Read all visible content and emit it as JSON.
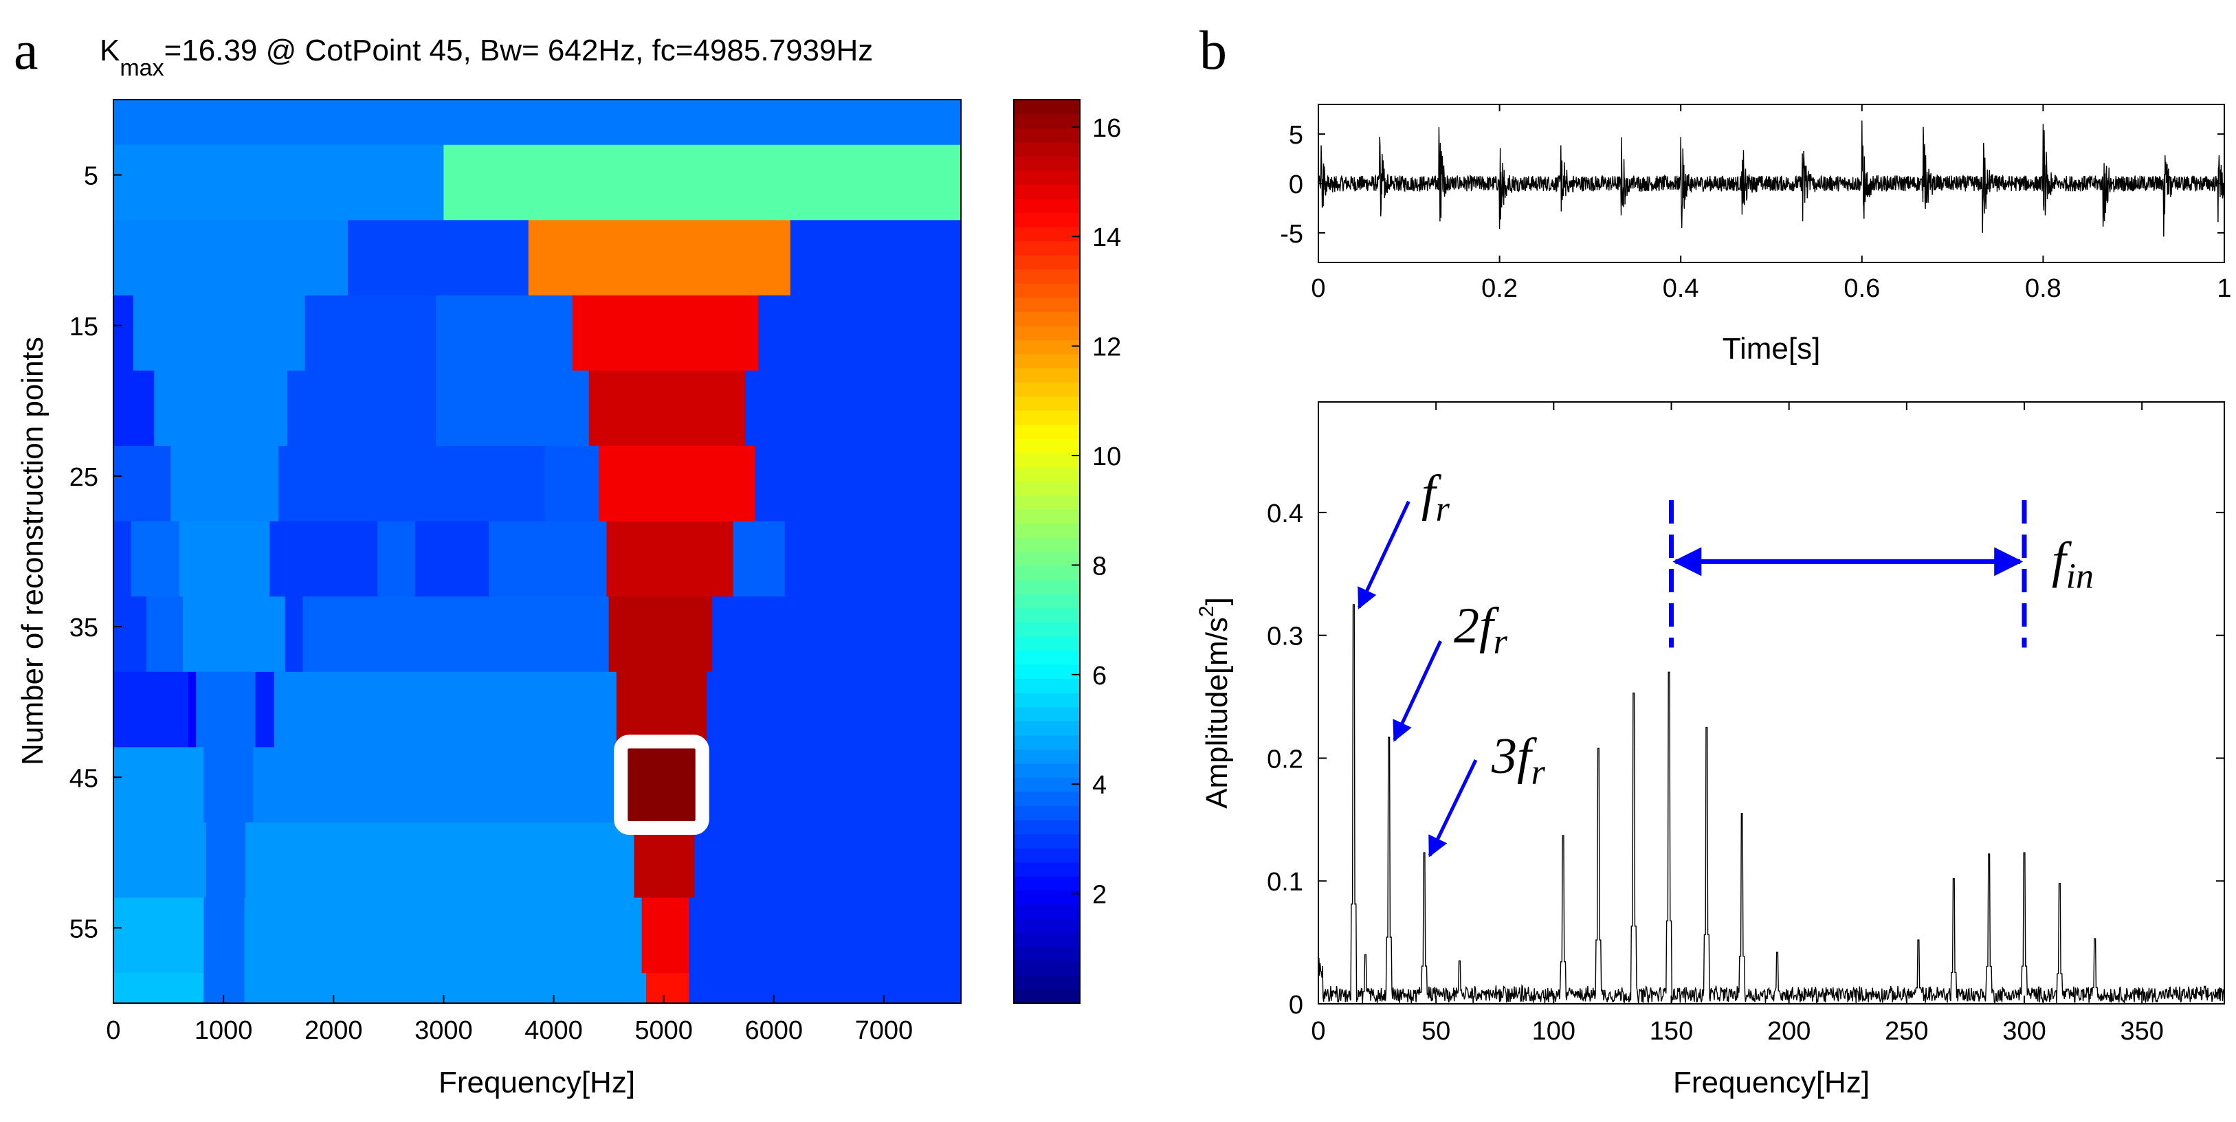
{
  "panel_labels": {
    "a": "a",
    "b": "b"
  },
  "chart_data": [
    {
      "id": "kurtogram",
      "type": "heatmap",
      "title": {
        "base": "K",
        "sub": "max",
        "rest": "=16.39 @ CotPoint 45, Bw= 642Hz, fc=4985.7939Hz"
      },
      "xlabel": "Frequency[Hz]",
      "ylabel": "Number of reconstruction points",
      "xlim": [
        0,
        7700
      ],
      "ylim": [
        0,
        60
      ],
      "xticks": [
        0,
        1000,
        2000,
        3000,
        4000,
        5000,
        6000,
        7000
      ],
      "yticks": [
        5,
        15,
        25,
        35,
        45,
        55
      ],
      "colorbar": {
        "min": 0,
        "max": 16.5,
        "ticks": [
          2,
          4,
          6,
          8,
          10,
          12,
          14,
          16
        ]
      },
      "rows": [
        {
          "y0": 0,
          "y1": 3,
          "segs": [
            [
              0,
              7700,
              4.0
            ]
          ]
        },
        {
          "y0": 3,
          "y1": 8,
          "segs": [
            [
              0,
              3000,
              4.3
            ],
            [
              3000,
              7700,
              7.6
            ]
          ]
        },
        {
          "y0": 8,
          "y1": 13,
          "segs": [
            [
              0,
              2130,
              4.2
            ],
            [
              2130,
              3770,
              3.2
            ],
            [
              3770,
              6150,
              12.4
            ],
            [
              6150,
              7700,
              3.0
            ]
          ]
        },
        {
          "y0": 13,
          "y1": 18,
          "segs": [
            [
              0,
              180,
              2.7
            ],
            [
              180,
              1740,
              4.2
            ],
            [
              1740,
              2930,
              3.3
            ],
            [
              2930,
              4170,
              3.7
            ],
            [
              4170,
              5860,
              14.6
            ],
            [
              5860,
              7700,
              3.0
            ]
          ]
        },
        {
          "y0": 18,
          "y1": 23,
          "segs": [
            [
              0,
              370,
              2.7
            ],
            [
              370,
              1580,
              4.2
            ],
            [
              1580,
              2930,
              3.3
            ],
            [
              2930,
              4320,
              3.7
            ],
            [
              4320,
              5740,
              15.2
            ],
            [
              5740,
              7700,
              3.0
            ]
          ]
        },
        {
          "y0": 23,
          "y1": 28,
          "segs": [
            [
              0,
              520,
              3.4
            ],
            [
              520,
              1500,
              4.2
            ],
            [
              1500,
              3920,
              3.3
            ],
            [
              3920,
              4410,
              3.5
            ],
            [
              4410,
              5830,
              14.6
            ],
            [
              5830,
              7700,
              3.0
            ]
          ]
        },
        {
          "y0": 28,
          "y1": 33,
          "segs": [
            [
              0,
              160,
              3.0
            ],
            [
              160,
              600,
              3.8
            ],
            [
              600,
              1420,
              4.3
            ],
            [
              1420,
              2400,
              3.0
            ],
            [
              2400,
              2740,
              3.6
            ],
            [
              2740,
              3410,
              3.0
            ],
            [
              3410,
              4480,
              3.6
            ],
            [
              4480,
              5630,
              15.3
            ],
            [
              5630,
              6100,
              3.6
            ],
            [
              6100,
              7700,
              3.0
            ]
          ]
        },
        {
          "y0": 33,
          "y1": 38,
          "segs": [
            [
              0,
              300,
              3.0
            ],
            [
              300,
              630,
              3.7
            ],
            [
              630,
              1560,
              4.3
            ],
            [
              1560,
              1720,
              3.0
            ],
            [
              1720,
              4500,
              3.7
            ],
            [
              4500,
              5440,
              15.6
            ],
            [
              5440,
              7700,
              3.0
            ]
          ]
        },
        {
          "y0": 38,
          "y1": 43,
          "segs": [
            [
              0,
              680,
              2.7
            ],
            [
              680,
              750,
              2.1
            ],
            [
              750,
              1290,
              3.8
            ],
            [
              1290,
              1460,
              2.6
            ],
            [
              1460,
              4570,
              4.2
            ],
            [
              4570,
              5390,
              15.6
            ],
            [
              5390,
              7700,
              3.0
            ]
          ]
        },
        {
          "y0": 43,
          "y1": 48,
          "segs": [
            [
              0,
              820,
              4.5
            ],
            [
              820,
              1270,
              3.8
            ],
            [
              1270,
              4650,
              4.2
            ],
            [
              4650,
              5320,
              16.39
            ],
            [
              5320,
              7700,
              3.0
            ]
          ]
        },
        {
          "y0": 48,
          "y1": 53,
          "segs": [
            [
              0,
              840,
              4.5
            ],
            [
              840,
              1200,
              3.8
            ],
            [
              1200,
              4730,
              4.5
            ],
            [
              4730,
              5280,
              15.5
            ],
            [
              5280,
              7700,
              3.0
            ]
          ]
        },
        {
          "y0": 53,
          "y1": 58,
          "segs": [
            [
              0,
              820,
              5.0
            ],
            [
              820,
              1190,
              3.8
            ],
            [
              1190,
              4800,
              4.5
            ],
            [
              4800,
              5230,
              14.6
            ],
            [
              5230,
              7700,
              3.0
            ]
          ]
        },
        {
          "y0": 58,
          "y1": 63,
          "segs": [
            [
              0,
              820,
              5.2
            ],
            [
              820,
              1190,
              3.8
            ],
            [
              1190,
              4840,
              4.5
            ],
            [
              4840,
              5230,
              14.2
            ],
            [
              5230,
              7700,
              3.0
            ]
          ]
        }
      ],
      "highlight": {
        "x0": 4660,
        "x1": 5300,
        "y0": 43,
        "y1": 48
      }
    },
    {
      "id": "time-signal",
      "type": "line",
      "xlabel": "Time[s]",
      "ylabel": "",
      "xlim": [
        0,
        1
      ],
      "ylim": [
        -8,
        8
      ],
      "xticks": [
        0,
        0.2,
        0.4,
        0.6,
        0.8,
        1
      ],
      "yticks": [
        5,
        0,
        -5
      ],
      "noise_amplitude": 0.8,
      "impulses": [
        {
          "t": 0.003,
          "a": 3.6
        },
        {
          "t": 0.067,
          "a": 5.3
        },
        {
          "t": 0.133,
          "a": 6.4
        },
        {
          "t": 0.2,
          "a": 5.2
        },
        {
          "t": 0.267,
          "a": 4.4
        },
        {
          "t": 0.334,
          "a": 4.6
        },
        {
          "t": 0.4,
          "a": 5.8
        },
        {
          "t": 0.467,
          "a": 4.9
        },
        {
          "t": 0.534,
          "a": 4.4
        },
        {
          "t": 0.6,
          "a": 6.0
        },
        {
          "t": 0.667,
          "a": 6.8
        },
        {
          "t": 0.733,
          "a": 5.2
        },
        {
          "t": 0.8,
          "a": 6.3
        },
        {
          "t": 0.866,
          "a": 4.9
        },
        {
          "t": 0.933,
          "a": 5.1
        },
        {
          "t": 0.993,
          "a": 3.9
        }
      ]
    },
    {
      "id": "envelope-spectrum",
      "type": "line",
      "xlabel": "Frequency[Hz]",
      "ylabel": "Amplitude[m/s²]",
      "ylabel_parts": {
        "base": "Amplitude[m/s",
        "sup": "2",
        "end": "]"
      },
      "xlim": [
        0,
        385
      ],
      "ylim": [
        0,
        0.49
      ],
      "xticks": [
        0,
        50,
        100,
        150,
        200,
        250,
        300,
        350
      ],
      "yticks": [
        0,
        0.1,
        0.2,
        0.3,
        0.4
      ],
      "noise_level": 0.012,
      "peaks": [
        [
          15,
          0.325
        ],
        [
          30,
          0.217
        ],
        [
          45,
          0.123
        ],
        [
          104,
          0.137
        ],
        [
          119,
          0.208
        ],
        [
          134,
          0.253
        ],
        [
          149,
          0.27
        ],
        [
          165,
          0.225
        ],
        [
          180,
          0.155
        ],
        [
          195,
          0.042
        ],
        [
          255,
          0.052
        ],
        [
          270,
          0.102
        ],
        [
          285,
          0.122
        ],
        [
          300,
          0.123
        ],
        [
          315,
          0.098
        ],
        [
          330,
          0.053
        ],
        [
          20,
          0.04
        ],
        [
          60,
          0.035
        ]
      ],
      "annotations": [
        {
          "id": "fr",
          "text": "f",
          "sub": "r",
          "prefix": "",
          "arrow_to": [
            15,
            0.325
          ]
        },
        {
          "id": "2fr",
          "text": "f",
          "sub": "r",
          "prefix": "2",
          "arrow_to": [
            30,
            0.217
          ]
        },
        {
          "id": "3fr",
          "text": "f",
          "sub": "r",
          "prefix": "3",
          "arrow_to": [
            45,
            0.123
          ]
        },
        {
          "id": "fin",
          "text": "f",
          "sub": "in",
          "prefix": "",
          "span": [
            150,
            300
          ],
          "y": 0.36
        }
      ],
      "annotation_color": "#0000ff"
    }
  ]
}
